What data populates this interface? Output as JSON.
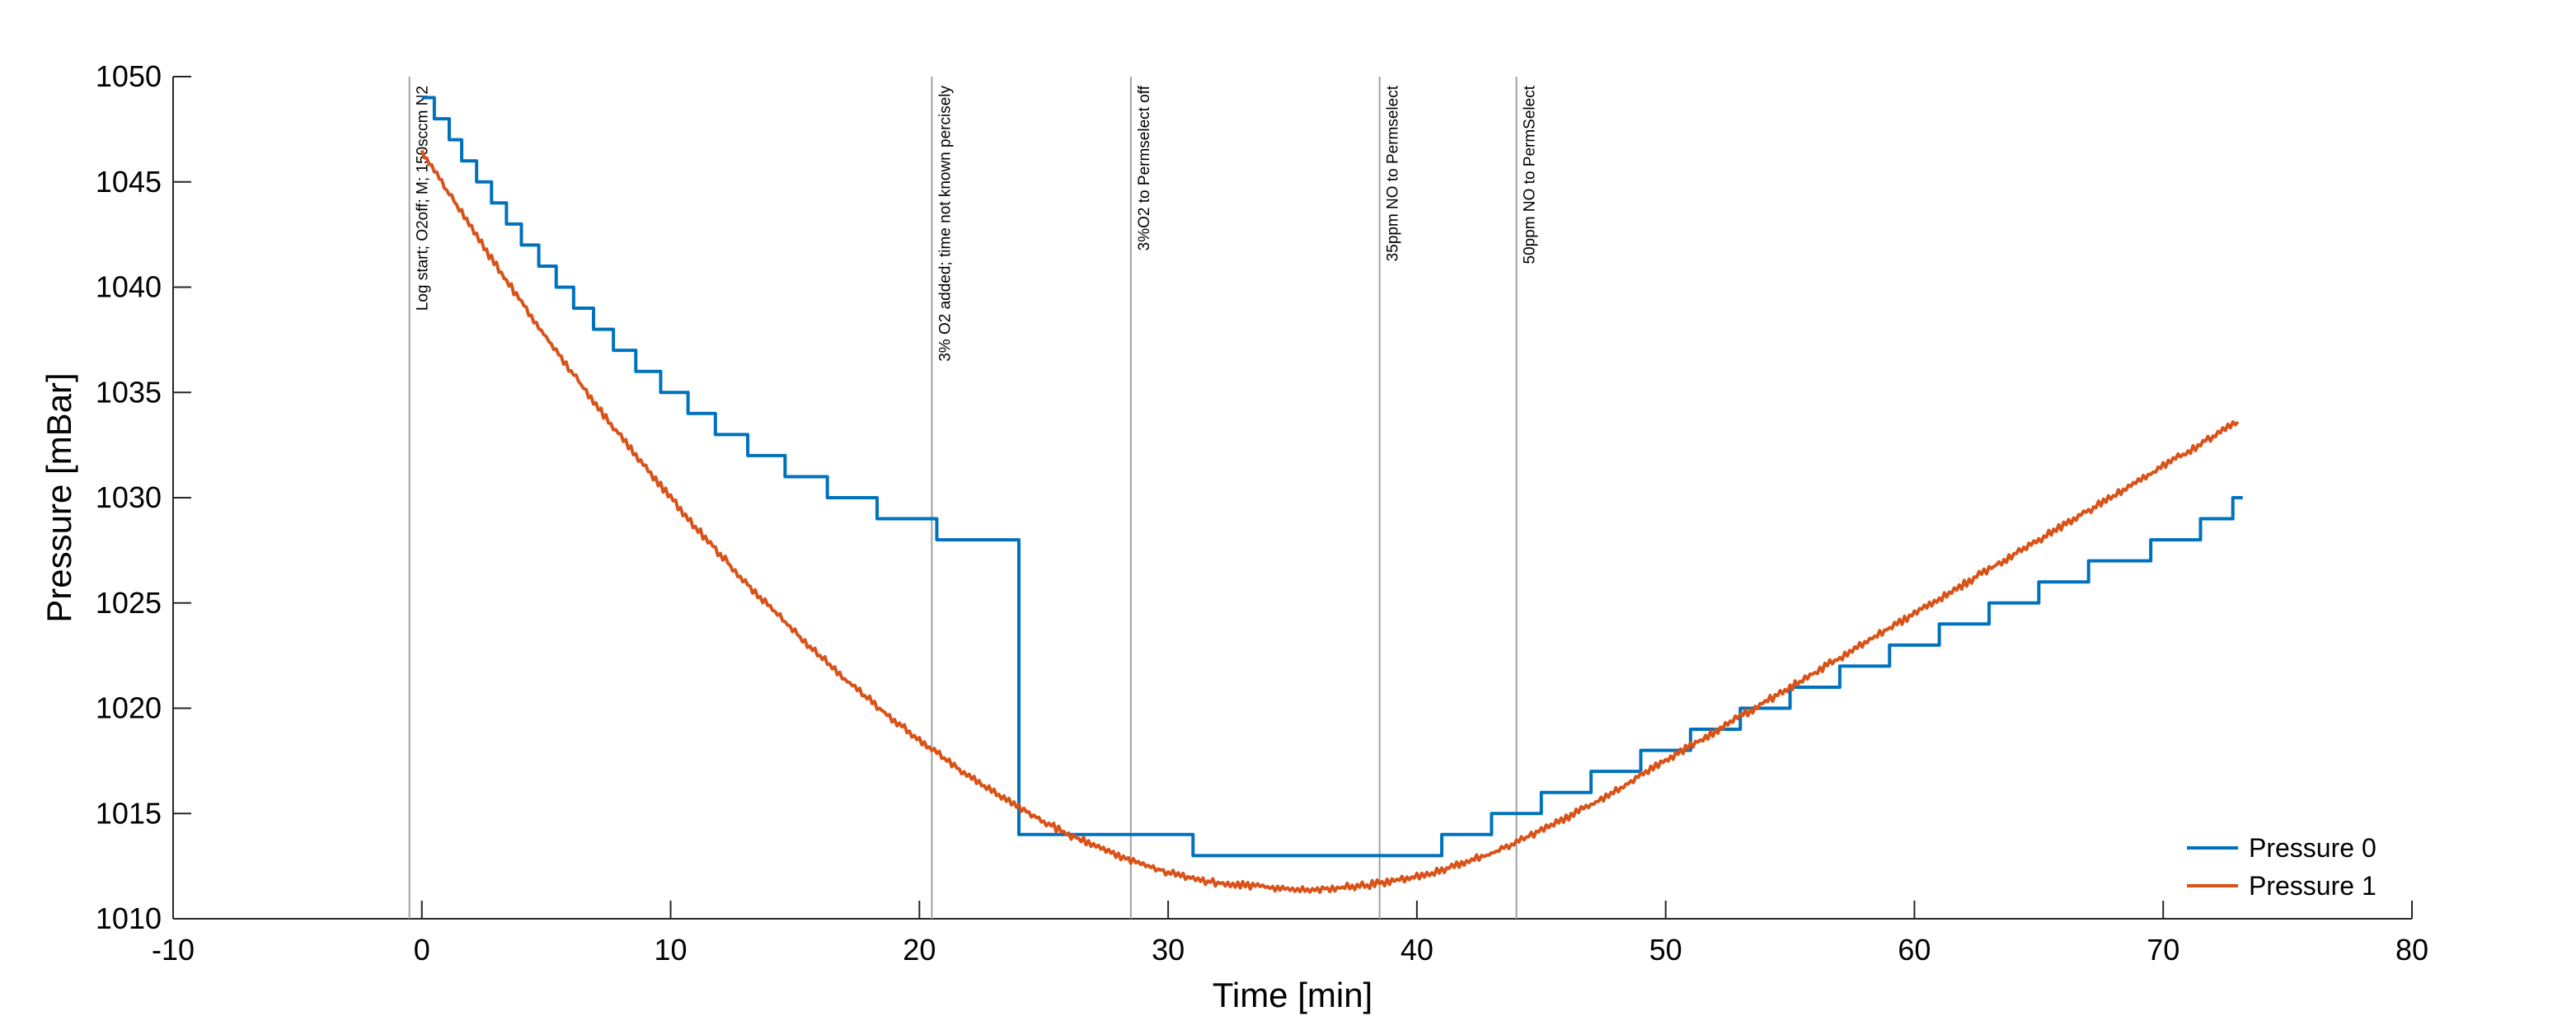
{
  "chart_data": {
    "type": "line",
    "xlabel": "Time [min]",
    "ylabel": "Pressure [mBar]",
    "xlim": [
      -10,
      80
    ],
    "ylim": [
      1010,
      1050
    ],
    "xticks": [
      -10,
      0,
      10,
      20,
      30,
      40,
      50,
      60,
      70,
      80
    ],
    "yticks": [
      1010,
      1015,
      1020,
      1025,
      1030,
      1035,
      1040,
      1045,
      1050
    ],
    "grid": false,
    "legend_position": "bottom-right",
    "annotations": [
      {
        "x": -0.5,
        "label": "Log start; O2off; M; 150sccm N2"
      },
      {
        "x": 20.5,
        "label": "3% O2 added; time not known percisely"
      },
      {
        "x": 28.5,
        "label": "3%O2 to Permselect off"
      },
      {
        "x": 38.5,
        "label": "35ppm NO to Permselect"
      },
      {
        "x": 44.0,
        "label": "50ppm NO to PermSelect"
      }
    ],
    "series": [
      {
        "name": "Pressure 0",
        "color": "#0072BD",
        "step": true,
        "x": [
          0,
          0.5,
          1.1,
          1.6,
          2.2,
          2.8,
          3.4,
          4.0,
          4.7,
          5.4,
          6.1,
          6.9,
          7.7,
          8.6,
          9.6,
          10.7,
          11.8,
          13.1,
          14.6,
          16.3,
          18.3,
          20.7,
          24.0,
          31.0,
          38.5,
          41.0,
          43.0,
          45.0,
          47.0,
          49.0,
          51.0,
          53.0,
          55.0,
          57.0,
          59.0,
          61.0,
          63.0,
          65.0,
          67.0,
          69.5,
          71.5,
          72.8
        ],
        "y": [
          1049,
          1048,
          1047,
          1046,
          1045,
          1044,
          1043,
          1042,
          1041,
          1040,
          1039,
          1038,
          1037,
          1036,
          1035,
          1034,
          1033,
          1032,
          1031,
          1030,
          1029,
          1028,
          1014,
          1013,
          1013,
          1014,
          1015,
          1016,
          1017,
          1018,
          1019,
          1020,
          1021,
          1022,
          1023,
          1024,
          1025,
          1026,
          1027,
          1028,
          1029,
          1030
        ]
      },
      {
        "name": "Pressure 1",
        "color": "#D95319",
        "step": false,
        "x": [
          0,
          1,
          2,
          3,
          4,
          5,
          6,
          7,
          8,
          9,
          10,
          11,
          12,
          13,
          14,
          15,
          16,
          17,
          18,
          19,
          20,
          21,
          22,
          23,
          24,
          25,
          26,
          27,
          28,
          29,
          30,
          31,
          32,
          33,
          34,
          35,
          36,
          37,
          38,
          39,
          40,
          41,
          42,
          43,
          44,
          45,
          46,
          47,
          48,
          49,
          50,
          51,
          52,
          53,
          54,
          55,
          56,
          57,
          58,
          59,
          60,
          61,
          62,
          63,
          64,
          65,
          66,
          67,
          68,
          69,
          70,
          71,
          72,
          73
        ],
        "y": [
          1046.5,
          1044.6,
          1042.8,
          1041.0,
          1039.3,
          1037.6,
          1036.0,
          1034.4,
          1032.9,
          1031.4,
          1030.0,
          1028.6,
          1027.3,
          1026.0,
          1024.8,
          1023.6,
          1022.5,
          1021.4,
          1020.4,
          1019.4,
          1018.5,
          1017.6,
          1016.8,
          1016.0,
          1015.3,
          1014.6,
          1014.0,
          1013.5,
          1013.0,
          1012.6,
          1012.2,
          1011.9,
          1011.7,
          1011.6,
          1011.5,
          1011.4,
          1011.4,
          1011.5,
          1011.6,
          1011.8,
          1012.0,
          1012.3,
          1012.7,
          1013.1,
          1013.6,
          1014.2,
          1014.8,
          1015.4,
          1016.1,
          1016.8,
          1017.5,
          1018.2,
          1018.9,
          1019.6,
          1020.3,
          1021.0,
          1021.7,
          1022.4,
          1023.1,
          1023.8,
          1024.5,
          1025.2,
          1025.9,
          1026.6,
          1027.3,
          1028.0,
          1028.7,
          1029.4,
          1030.1,
          1030.8,
          1031.5,
          1032.2,
          1032.9,
          1033.6
        ]
      }
    ]
  }
}
